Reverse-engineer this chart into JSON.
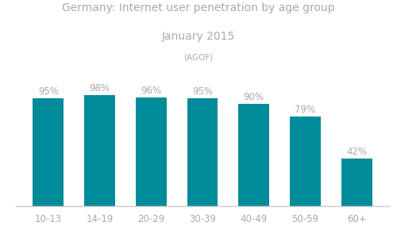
{
  "title_line1": "Germany: Internet user penetration by age group",
  "title_line2": "January 2015",
  "subtitle": "(AGOF)",
  "categories": [
    "10-13",
    "14-19",
    "20-29",
    "30-39",
    "40-49",
    "50-59",
    "60+"
  ],
  "values": [
    95,
    98,
    96,
    95,
    90,
    79,
    42
  ],
  "bar_color": "#008B9A",
  "label_color": "#aaaaaa",
  "title_color": "#aaaaaa",
  "background_color": "#ffffff",
  "bar_label_template": "{}%",
  "ylim": [
    0,
    115
  ],
  "xlabel_color": "#aaaaaa",
  "spine_color": "#cccccc"
}
